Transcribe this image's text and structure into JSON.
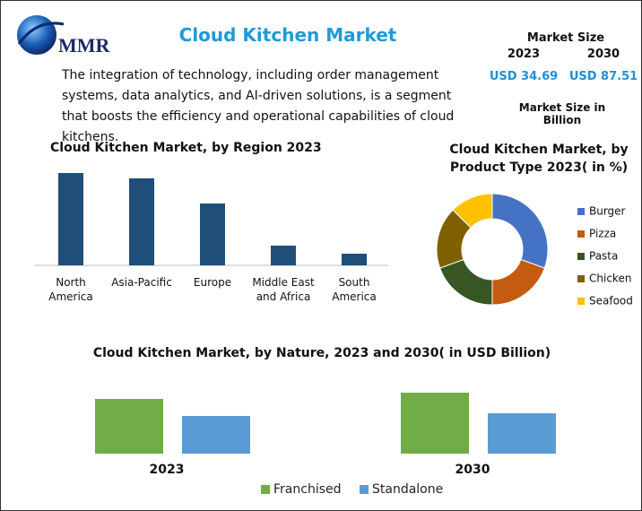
{
  "header": {
    "logo": "MMR",
    "title": "Cloud Kitchen Market",
    "description": "The integration of technology, including order management systems, data analytics, and AI-driven solutions, is a segment that boosts the efficiency and operational capabilities of cloud kitchens.",
    "market_size": {
      "title": "Market Size",
      "years": [
        "2023",
        "2030"
      ],
      "values": [
        "USD 34.69",
        "USD 87.51"
      ],
      "note": "Market Size in Billion"
    }
  },
  "chart_data": [
    {
      "type": "bar",
      "title": "Cloud Kitchen Market, by Region 2023",
      "categories": [
        "North America",
        "Asia-Pacific",
        "Europe",
        "Middle East and Africa",
        "South America"
      ],
      "values": [
        103,
        97,
        69,
        22,
        13
      ],
      "color": "#1f4e79"
    },
    {
      "type": "donut",
      "title": "Cloud Kitchen Market, by Product Type 2023( in %)",
      "categories": [
        "Burger",
        "Pizza",
        "Pasta",
        "Chicken",
        "Seafood"
      ],
      "values": [
        30.5,
        19.5,
        19.5,
        18,
        12.5
      ],
      "colors": [
        "#4472c4",
        "#c55a11",
        "#375623",
        "#7f6000",
        "#ffc000"
      ]
    },
    {
      "type": "grouped-bar",
      "title": "Cloud Kitchen Market, by Nature, 2023 and 2030( in USD Billion)",
      "categories": [
        "2023",
        "2030"
      ],
      "series": [
        {
          "name": "Franchised",
          "color": "#70ad47",
          "values": [
            61,
            68
          ]
        },
        {
          "name": "Standalone",
          "color": "#5b9bd5",
          "values": [
            42,
            45
          ]
        }
      ]
    }
  ]
}
